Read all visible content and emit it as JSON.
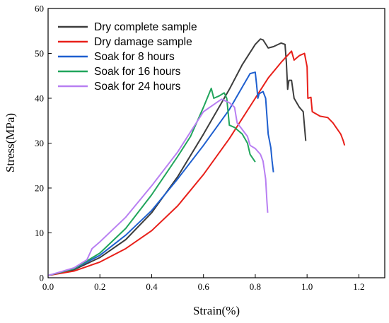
{
  "chart_data": {
    "type": "line",
    "title": "",
    "xlabel": "Strain(%)",
    "ylabel": "Stress(MPa)",
    "xlim": [
      0.0,
      1.3
    ],
    "ylim": [
      0,
      60
    ],
    "xticks": [
      "0.0",
      "0.2",
      "0.4",
      "0.6",
      "0.8",
      "1.0",
      "1.2"
    ],
    "yticks": [
      "0",
      "10",
      "20",
      "30",
      "40",
      "50",
      "60"
    ],
    "grid": false,
    "legend_position": "top-left",
    "series": [
      {
        "name": "Dry complete sample",
        "color": "#3d3d3d",
        "points": [
          [
            0.0,
            0.5
          ],
          [
            0.1,
            1.8
          ],
          [
            0.2,
            4.5
          ],
          [
            0.3,
            8.5
          ],
          [
            0.4,
            14.5
          ],
          [
            0.5,
            22.5
          ],
          [
            0.6,
            32.0
          ],
          [
            0.7,
            42.0
          ],
          [
            0.75,
            47.5
          ],
          [
            0.8,
            52.0
          ],
          [
            0.82,
            53.2
          ],
          [
            0.83,
            53.0
          ],
          [
            0.85,
            51.2
          ],
          [
            0.87,
            51.5
          ],
          [
            0.9,
            52.3
          ],
          [
            0.915,
            52.0
          ],
          [
            0.92,
            48.0
          ],
          [
            0.925,
            42.0
          ],
          [
            0.93,
            44.0
          ],
          [
            0.94,
            44.0
          ],
          [
            0.95,
            40.0
          ],
          [
            0.97,
            38.0
          ],
          [
            0.985,
            37.0
          ],
          [
            0.995,
            30.5
          ]
        ]
      },
      {
        "name": "Dry damage sample",
        "color": "#e8201a",
        "points": [
          [
            0.0,
            0.5
          ],
          [
            0.1,
            1.5
          ],
          [
            0.2,
            3.5
          ],
          [
            0.3,
            6.5
          ],
          [
            0.4,
            10.5
          ],
          [
            0.5,
            16.0
          ],
          [
            0.6,
            23.0
          ],
          [
            0.7,
            31.0
          ],
          [
            0.8,
            40.0
          ],
          [
            0.85,
            44.5
          ],
          [
            0.9,
            48.0
          ],
          [
            0.94,
            50.5
          ],
          [
            0.95,
            48.5
          ],
          [
            0.97,
            49.5
          ],
          [
            0.99,
            50.0
          ],
          [
            1.0,
            47.0
          ],
          [
            1.003,
            40.0
          ],
          [
            1.015,
            40.2
          ],
          [
            1.02,
            37.0
          ],
          [
            1.05,
            36.0
          ],
          [
            1.08,
            35.7
          ],
          [
            1.1,
            34.5
          ],
          [
            1.13,
            32.0
          ],
          [
            1.14,
            30.5
          ],
          [
            1.145,
            29.5
          ]
        ]
      },
      {
        "name": "Soak for 8 hours",
        "color": "#1e5fcf",
        "points": [
          [
            0.0,
            0.5
          ],
          [
            0.1,
            2.0
          ],
          [
            0.2,
            5.0
          ],
          [
            0.3,
            9.5
          ],
          [
            0.4,
            15.0
          ],
          [
            0.5,
            22.0
          ],
          [
            0.6,
            29.5
          ],
          [
            0.7,
            37.5
          ],
          [
            0.75,
            42.5
          ],
          [
            0.78,
            45.5
          ],
          [
            0.8,
            45.8
          ],
          [
            0.805,
            43.0
          ],
          [
            0.81,
            40.0
          ],
          [
            0.815,
            41.0
          ],
          [
            0.83,
            41.5
          ],
          [
            0.84,
            40.0
          ],
          [
            0.85,
            32.0
          ],
          [
            0.86,
            29.0
          ],
          [
            0.865,
            26.0
          ],
          [
            0.87,
            23.5
          ]
        ]
      },
      {
        "name": "Soak for 16 hours",
        "color": "#21a55c",
        "points": [
          [
            0.0,
            0.5
          ],
          [
            0.1,
            2.0
          ],
          [
            0.2,
            5.5
          ],
          [
            0.3,
            11.0
          ],
          [
            0.4,
            18.5
          ],
          [
            0.5,
            27.0
          ],
          [
            0.55,
            31.5
          ],
          [
            0.6,
            38.0
          ],
          [
            0.63,
            42.2
          ],
          [
            0.64,
            40.0
          ],
          [
            0.66,
            40.5
          ],
          [
            0.68,
            41.2
          ],
          [
            0.69,
            40.0
          ],
          [
            0.7,
            34.0
          ],
          [
            0.72,
            33.5
          ],
          [
            0.75,
            32.0
          ],
          [
            0.77,
            30.0
          ],
          [
            0.78,
            27.5
          ],
          [
            0.8,
            25.8
          ]
        ]
      },
      {
        "name": "Soak for 24 hours",
        "color": "#b87ff2",
        "points": [
          [
            0.0,
            0.5
          ],
          [
            0.1,
            2.2
          ],
          [
            0.15,
            4.0
          ],
          [
            0.17,
            6.5
          ],
          [
            0.2,
            8.0
          ],
          [
            0.3,
            13.5
          ],
          [
            0.4,
            20.5
          ],
          [
            0.5,
            28.0
          ],
          [
            0.55,
            32.5
          ],
          [
            0.6,
            37.0
          ],
          [
            0.65,
            39.0
          ],
          [
            0.67,
            39.8
          ],
          [
            0.7,
            39.0
          ],
          [
            0.72,
            38.0
          ],
          [
            0.73,
            34.5
          ],
          [
            0.75,
            33.0
          ],
          [
            0.77,
            31.5
          ],
          [
            0.78,
            29.5
          ],
          [
            0.8,
            28.8
          ],
          [
            0.82,
            27.5
          ],
          [
            0.83,
            26.0
          ],
          [
            0.84,
            22.0
          ],
          [
            0.845,
            17.0
          ],
          [
            0.848,
            14.5
          ]
        ]
      }
    ]
  }
}
